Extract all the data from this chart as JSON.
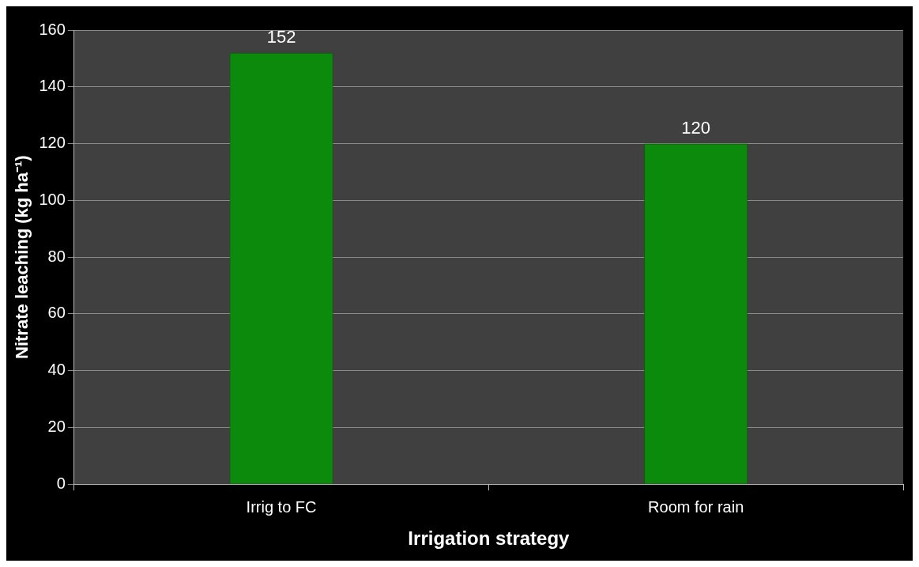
{
  "chart_data": {
    "type": "bar",
    "xlabel": "Irrigation strategy",
    "ylabel": "Nitrate leaching (kg ha⁻¹)",
    "categories": [
      "Irrig to FC",
      "Room for rain"
    ],
    "values": [
      152,
      120
    ],
    "color": "#0b8a0b",
    "ylim": [
      0,
      160
    ],
    "yticks": [
      0,
      20,
      40,
      60,
      80,
      100,
      120,
      140,
      160
    ],
    "grid": "y",
    "data_labels": true,
    "legend": false
  }
}
